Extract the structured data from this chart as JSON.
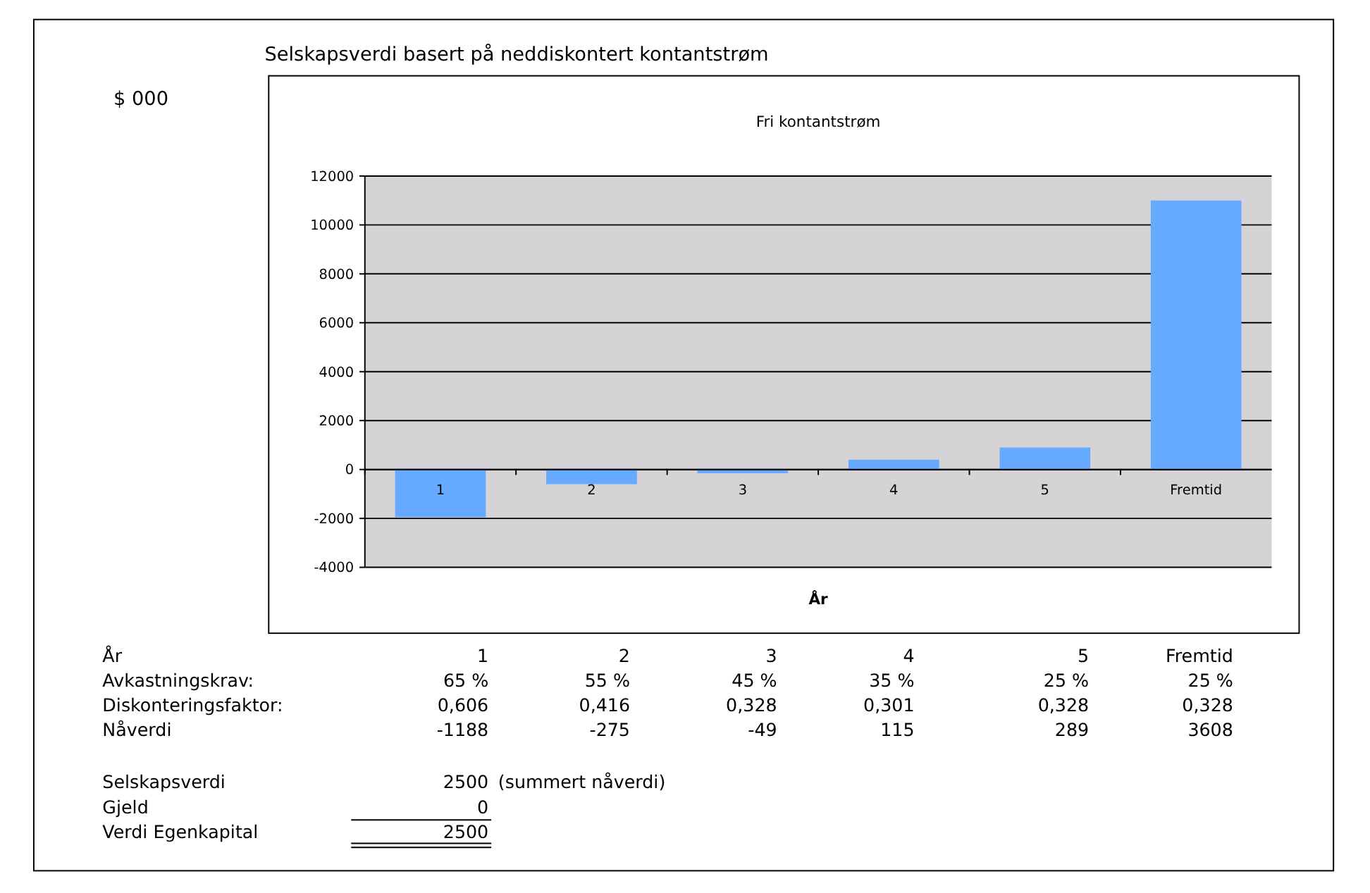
{
  "chart_data": {
    "type": "bar",
    "title": "Selskapsverdi basert på neddiskontert kontantstrøm",
    "subtitle": "Fri kontantstrøm",
    "xlabel": "År",
    "categories": [
      "1",
      "2",
      "3",
      "4",
      "5",
      "Fremtid"
    ],
    "values": [
      -1950,
      -600,
      -150,
      400,
      900,
      11000
    ],
    "color": "#66aaff",
    "ylim": [
      -4000,
      12000
    ],
    "yticks": [
      -4000,
      -2000,
      0,
      2000,
      4000,
      6000,
      8000,
      10000,
      12000
    ],
    "grid": "y",
    "annotations": [
      "År",
      "1",
      "2",
      "3",
      "4",
      "5",
      "Fremtid",
      "Avkastningskrav:",
      "65 %",
      "55 %",
      "45 %",
      "35 %",
      "25 %",
      "25 %",
      "Diskonteringsfaktor:",
      "0,606",
      "0,416",
      "0,328",
      "0,301",
      "0,328",
      "0,328",
      "Nåverdi",
      "-1188",
      "-275",
      "-49",
      "115",
      "289",
      "3608",
      "Selskapsverdi",
      "2500",
      "(summert nåverdi)",
      "Gjeld",
      "0",
      "Verdi Egenkapital",
      "2500",
      "$ 000"
    ]
  }
}
